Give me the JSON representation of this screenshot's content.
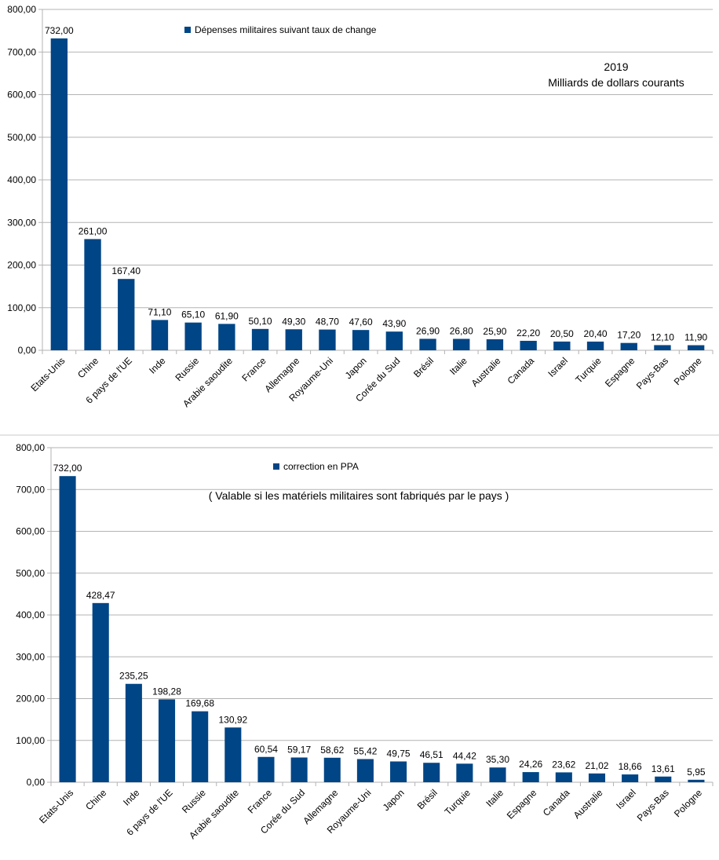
{
  "chart_data": [
    {
      "type": "bar",
      "legend": "Dépenses militaires suivant taux de change",
      "legend_position": "top-center",
      "annotation_lines": [
        "2019",
        "Milliards de dollars courants"
      ],
      "categories": [
        "Etats-Unis",
        "Chine",
        "6 pays de l'UE",
        "Inde",
        "Russie",
        "Arabie saoudite",
        "France",
        "Allemagne",
        "Royaume-Uni",
        "Japon",
        "Corée du Sud",
        "Brésil",
        "Italie",
        "Australie",
        "Canada",
        "Israel",
        "Turquie",
        "Espagne",
        "Pays-Bas",
        "Pologne"
      ],
      "values": [
        732.0,
        261.0,
        167.4,
        71.1,
        65.1,
        61.9,
        50.1,
        49.3,
        48.7,
        47.6,
        43.9,
        26.9,
        26.8,
        25.9,
        22.2,
        20.5,
        20.4,
        17.2,
        12.1,
        11.9
      ],
      "data_labels": [
        "732,00",
        "261,00",
        "167,40",
        "71,10",
        "65,10",
        "61,90",
        "50,10",
        "49,30",
        "48,70",
        "47,60",
        "43,90",
        "26,90",
        "26,80",
        "25,90",
        "22,20",
        "20,50",
        "20,40",
        "17,20",
        "12,10",
        "11,90"
      ],
      "y_ticks": [
        "0,00",
        "100,00",
        "200,00",
        "300,00",
        "400,00",
        "500,00",
        "600,00",
        "700,00",
        "800,00"
      ],
      "ylim": [
        0,
        800
      ],
      "grid": true,
      "bar_color": "#004586"
    },
    {
      "type": "bar",
      "legend": "correction en PPA",
      "legend_position": "top-center",
      "annotation_lines": [
        "( Valable si les matériels militaires sont fabriqués par le pays )"
      ],
      "categories": [
        "Etats-Unis",
        "Chine",
        "Inde",
        "6 pays de l'UE",
        "Russie",
        "Arabie saoudite",
        "France",
        "Corée du Sud",
        "Allemagne",
        "Royaume-Uni",
        "Japon",
        "Brésil",
        "Turquie",
        "Italie",
        "Espagne",
        "Canada",
        "Australie",
        "Israel",
        "Pays-Bas",
        "Pologne"
      ],
      "values": [
        732.0,
        428.47,
        235.25,
        198.28,
        169.68,
        130.92,
        60.54,
        59.17,
        58.62,
        55.42,
        49.75,
        46.51,
        44.42,
        35.3,
        24.26,
        23.62,
        21.02,
        18.66,
        13.61,
        5.95
      ],
      "data_labels": [
        "732,00",
        "428,47",
        "235,25",
        "198,28",
        "169,68",
        "130,92",
        "60,54",
        "59,17",
        "58,62",
        "55,42",
        "49,75",
        "46,51",
        "44,42",
        "35,30",
        "24,26",
        "23,62",
        "21,02",
        "18,66",
        "13,61",
        "5,95"
      ],
      "y_ticks": [
        "0,00",
        "100,00",
        "200,00",
        "300,00",
        "400,00",
        "500,00",
        "600,00",
        "700,00",
        "800,00"
      ],
      "ylim": [
        0,
        800
      ],
      "grid": true,
      "bar_color": "#004586"
    }
  ]
}
